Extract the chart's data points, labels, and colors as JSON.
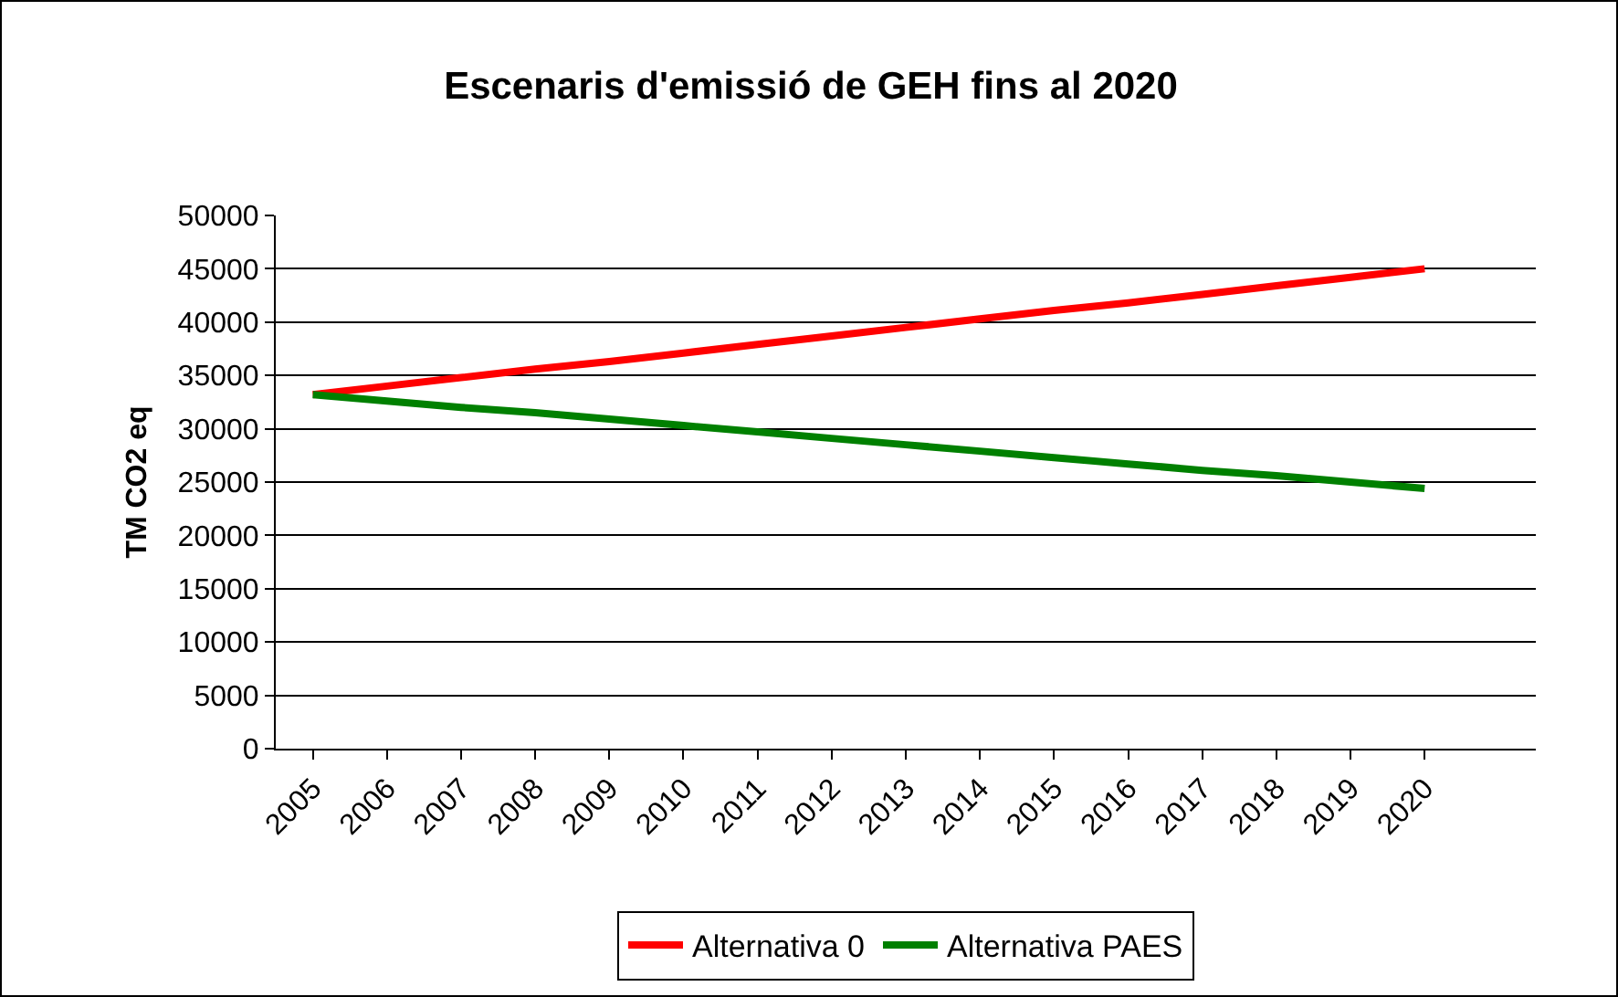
{
  "chart_data": {
    "type": "line",
    "title": "Escenaris d'emissió de GEH fins al 2020",
    "ylabel": "TM CO2 eq",
    "categories": [
      "2005",
      "2006",
      "2007",
      "2008",
      "2009",
      "2010",
      "2011",
      "2012",
      "2013",
      "2014",
      "2015",
      "2016",
      "2017",
      "2018",
      "2019",
      "2020"
    ],
    "series": [
      {
        "name": "Alternativa 0",
        "color": "#ff0000",
        "values": [
          33200,
          34000,
          34800,
          35600,
          36300,
          37100,
          37900,
          38700,
          39500,
          40300,
          41100,
          41800,
          42600,
          43400,
          44200,
          45000
        ]
      },
      {
        "name": "Alternativa PAES",
        "color": "#008000",
        "values": [
          33200,
          32600,
          32000,
          31500,
          30900,
          30300,
          29700,
          29100,
          28500,
          27900,
          27300,
          26700,
          26100,
          25600,
          25000,
          24400
        ]
      }
    ],
    "ylim": [
      0,
      50000
    ],
    "yticks": [
      0,
      5000,
      10000,
      15000,
      20000,
      25000,
      30000,
      35000,
      40000,
      45000,
      50000
    ],
    "grid": "y",
    "legend": "bottom",
    "marker": "none",
    "line_style": "solid"
  }
}
